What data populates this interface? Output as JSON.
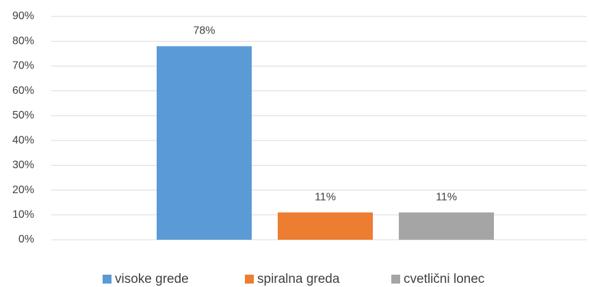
{
  "chart_data": {
    "type": "bar",
    "categories": [
      null
    ],
    "series": [
      {
        "name": "visoke grede",
        "color": "#5b9bd5",
        "values": [
          78
        ],
        "value_labels": [
          "78%"
        ]
      },
      {
        "name": "spiralna greda",
        "color": "#ed7d31",
        "values": [
          11
        ],
        "value_labels": [
          "11%"
        ]
      },
      {
        "name": "cvetlični lonec",
        "color": "#a5a5a5",
        "values": [
          11
        ],
        "value_labels": [
          "11%"
        ]
      }
    ],
    "ylim": [
      0,
      90
    ],
    "yticks": [
      {
        "value": 0,
        "label": "0%"
      },
      {
        "value": 10,
        "label": "10%"
      },
      {
        "value": 20,
        "label": "20%"
      },
      {
        "value": 30,
        "label": "30%"
      },
      {
        "value": 40,
        "label": "40%"
      },
      {
        "value": 50,
        "label": "50%"
      },
      {
        "value": 60,
        "label": "60%"
      },
      {
        "value": 70,
        "label": "70%"
      },
      {
        "value": 80,
        "label": "80%"
      },
      {
        "value": 90,
        "label": "90%"
      }
    ],
    "grid": true,
    "legend": "bottom"
  }
}
